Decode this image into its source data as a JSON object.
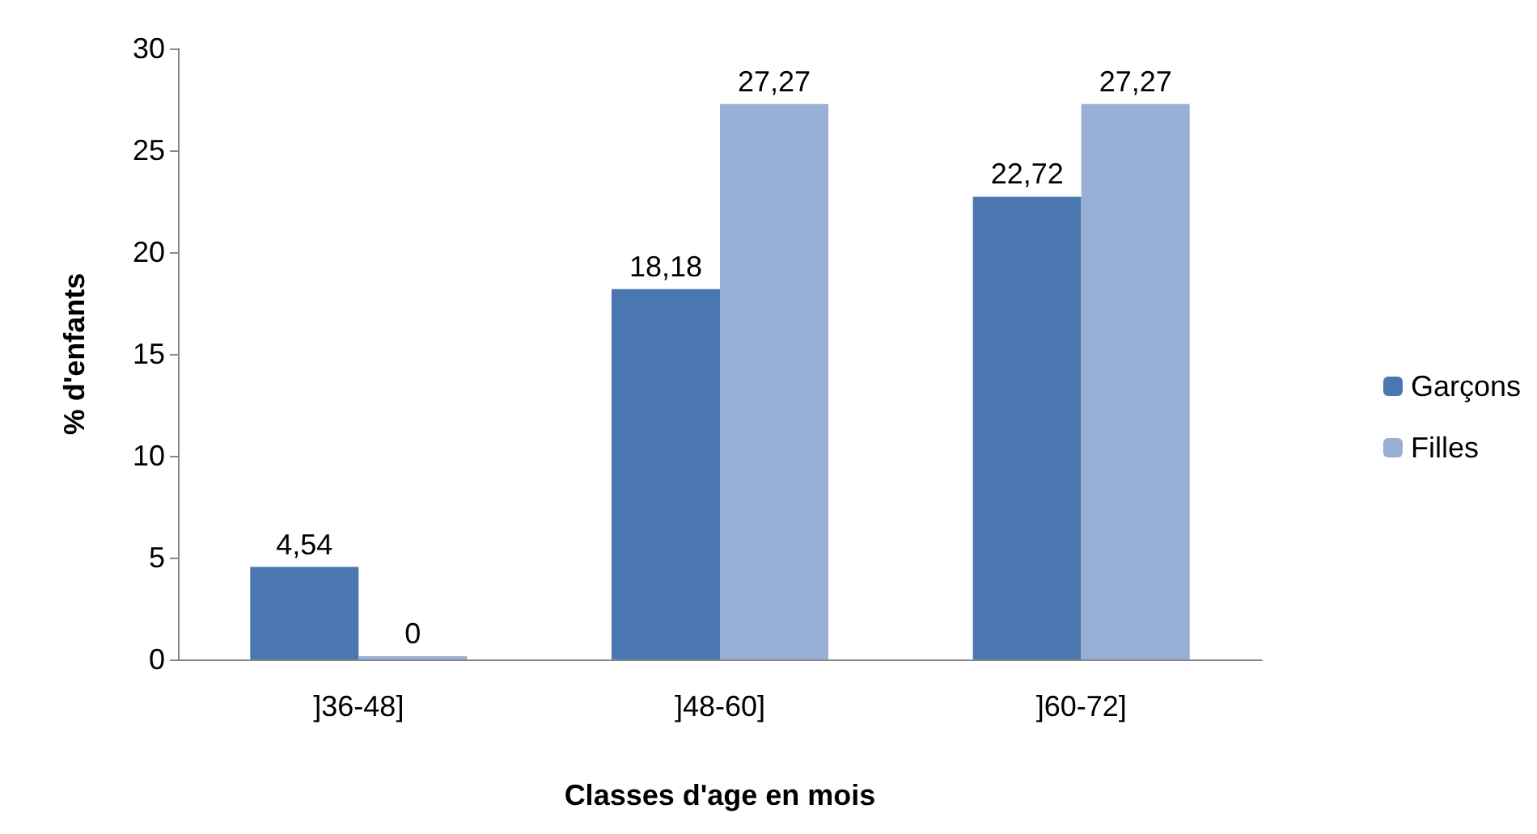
{
  "chart_data": {
    "type": "bar",
    "xlabel": "Classes d'age en mois",
    "ylabel": "% d'enfants",
    "categories": [
      "]36-48]",
      "]48-60]",
      "]60-72]"
    ],
    "series": [
      {
        "name": "Garçons",
        "color": "#4a77b0",
        "values": [
          4.54,
          18.18,
          22.72
        ],
        "value_labels": [
          "4,54",
          "18,18",
          "22,72"
        ]
      },
      {
        "name": "Filles",
        "color": "#98afd6",
        "values": [
          0,
          27.27,
          27.27
        ],
        "value_labels": [
          "0",
          "27,27",
          "27,27"
        ]
      }
    ],
    "ylim": [
      0,
      30
    ],
    "yticks": [
      0,
      5,
      10,
      15,
      20,
      25,
      30
    ],
    "grid": false,
    "legend": "right"
  }
}
